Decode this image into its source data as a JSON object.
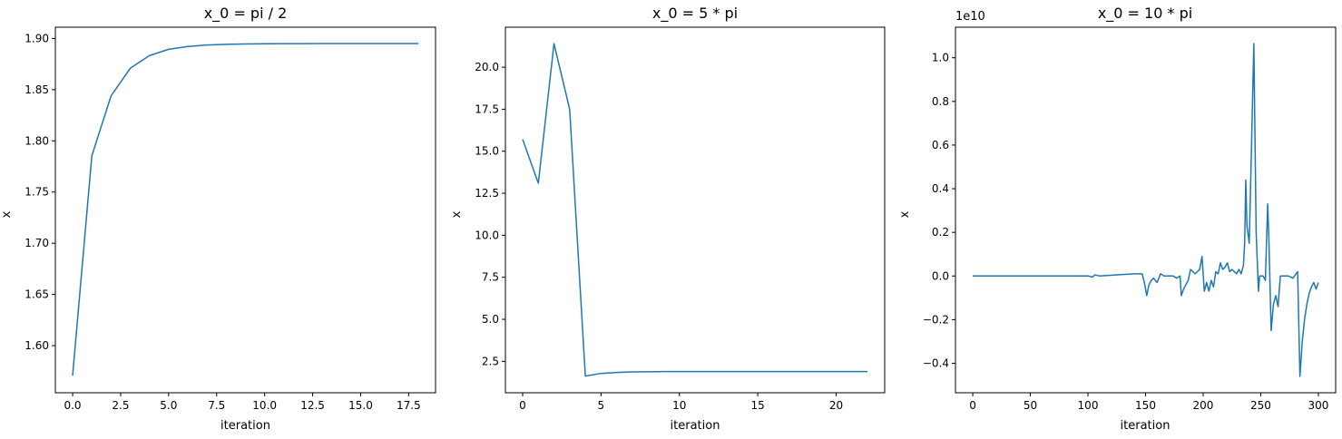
{
  "chart_data": [
    {
      "type": "line",
      "title": "x_0 = pi / 2",
      "xlabel": "iteration",
      "ylabel": "x",
      "xlim": [
        -0.9,
        18.9
      ],
      "ylim": [
        1.554,
        1.911
      ],
      "xticks": [
        0.0,
        2.5,
        5.0,
        7.5,
        10.0,
        12.5,
        15.0,
        17.5
      ],
      "xtick_labels": [
        "0.0",
        "2.5",
        "5.0",
        "7.5",
        "10.0",
        "12.5",
        "15.0",
        "17.5"
      ],
      "yticks": [
        1.6,
        1.65,
        1.7,
        1.75,
        1.8,
        1.85,
        1.9
      ],
      "ytick_labels": [
        "1.60",
        "1.65",
        "1.70",
        "1.75",
        "1.80",
        "1.85",
        "1.90"
      ],
      "offset_label": "",
      "series": [
        {
          "color": "#1f77b4",
          "x": [
            0,
            1,
            2,
            3,
            4,
            5,
            6,
            7,
            8,
            9,
            10,
            11,
            12,
            13,
            14,
            15,
            16,
            17,
            18
          ],
          "y": [
            1.5708,
            1.7854,
            1.8439,
            1.8709,
            1.8833,
            1.8894,
            1.8922,
            1.8936,
            1.8943,
            1.8946,
            1.8948,
            1.8949,
            1.8949,
            1.895,
            1.895,
            1.895,
            1.895,
            1.895,
            1.895
          ]
        }
      ]
    },
    {
      "type": "line",
      "title": "x_0 = 5 * pi",
      "xlabel": "iteration",
      "ylabel": "x",
      "xlim": [
        -1.1,
        23.1
      ],
      "ylim": [
        0.63,
        22.38
      ],
      "xticks": [
        0,
        5,
        10,
        15,
        20
      ],
      "xtick_labels": [
        "0",
        "5",
        "10",
        "15",
        "20"
      ],
      "yticks": [
        2.5,
        5.0,
        7.5,
        10.0,
        12.5,
        15.0,
        17.5,
        20.0
      ],
      "ytick_labels": [
        "2.5",
        "5.0",
        "7.5",
        "10.0",
        "12.5",
        "15.0",
        "17.5",
        "20.0"
      ],
      "offset_label": "",
      "series": [
        {
          "color": "#1f77b4",
          "x": [
            0,
            1,
            2,
            3,
            4,
            5,
            6,
            7,
            8,
            9,
            10,
            11,
            12,
            13,
            14,
            15,
            16,
            17,
            18,
            19,
            20,
            21,
            22
          ],
          "y": [
            15.71,
            13.1,
            21.4,
            17.5,
            1.62,
            1.78,
            1.84,
            1.87,
            1.88,
            1.89,
            1.89,
            1.89,
            1.89,
            1.89,
            1.89,
            1.89,
            1.89,
            1.89,
            1.89,
            1.89,
            1.89,
            1.89,
            1.89
          ]
        }
      ]
    },
    {
      "type": "line",
      "title": "x_0 = 10 * pi",
      "xlabel": "iteration",
      "ylabel": "x",
      "xlim": [
        -15,
        315
      ],
      "ylim": [
        -0.535,
        1.14
      ],
      "xticks": [
        0,
        50,
        100,
        150,
        200,
        250,
        300
      ],
      "xtick_labels": [
        "0",
        "50",
        "100",
        "150",
        "200",
        "250",
        "300"
      ],
      "yticks": [
        -0.4,
        -0.2,
        0.0,
        0.2,
        0.4,
        0.6,
        0.8,
        1.0
      ],
      "ytick_labels": [
        "−0.4",
        "−0.2",
        "0.0",
        "0.2",
        "0.4",
        "0.6",
        "0.8",
        "1.0"
      ],
      "offset_label": "1e10",
      "series": [
        {
          "color": "#1f77b4",
          "x": [
            0,
            50,
            100,
            104,
            106,
            110,
            140,
            147,
            149,
            151,
            153,
            155,
            157,
            160,
            163,
            166,
            170,
            174,
            177,
            180,
            181,
            183,
            185,
            187,
            189,
            191,
            193,
            195,
            197,
            199,
            201,
            203,
            205,
            207,
            209,
            211,
            213,
            215,
            217,
            219,
            221,
            223,
            225,
            227,
            229,
            231,
            233,
            235,
            236,
            237,
            238,
            240,
            242,
            244,
            246,
            248,
            249,
            252,
            254,
            256,
            257,
            259,
            261,
            263,
            265,
            267,
            269,
            271,
            274,
            278,
            282,
            284,
            286,
            288,
            290,
            292,
            294,
            296,
            298,
            300
          ],
          "y": [
            0,
            0,
            0,
            -0.005,
            0.005,
            0,
            0.01,
            0.01,
            -0.03,
            -0.09,
            -0.04,
            -0.02,
            -0.01,
            -0.03,
            0.01,
            0,
            0,
            0,
            -0.01,
            0,
            -0.09,
            -0.06,
            -0.04,
            -0.02,
            0.03,
            0.02,
            0.01,
            0.02,
            0.03,
            0.09,
            -0.07,
            -0.03,
            -0.07,
            -0.02,
            -0.05,
            0.02,
            0.01,
            0.06,
            0.03,
            0.04,
            0.06,
            0.02,
            0.03,
            0.02,
            0.01,
            0.03,
            0.01,
            0.05,
            0.15,
            0.44,
            0.23,
            0.15,
            0.6,
            1.065,
            0.2,
            -0.07,
            0.0,
            0.0,
            -0.02,
            0.33,
            0.18,
            -0.25,
            -0.13,
            -0.09,
            -0.14,
            0.0,
            0.0,
            0.0,
            0.0,
            -0.01,
            0.02,
            -0.46,
            -0.3,
            -0.2,
            -0.13,
            -0.08,
            -0.05,
            -0.03,
            -0.06,
            -0.03
          ]
        }
      ]
    }
  ]
}
